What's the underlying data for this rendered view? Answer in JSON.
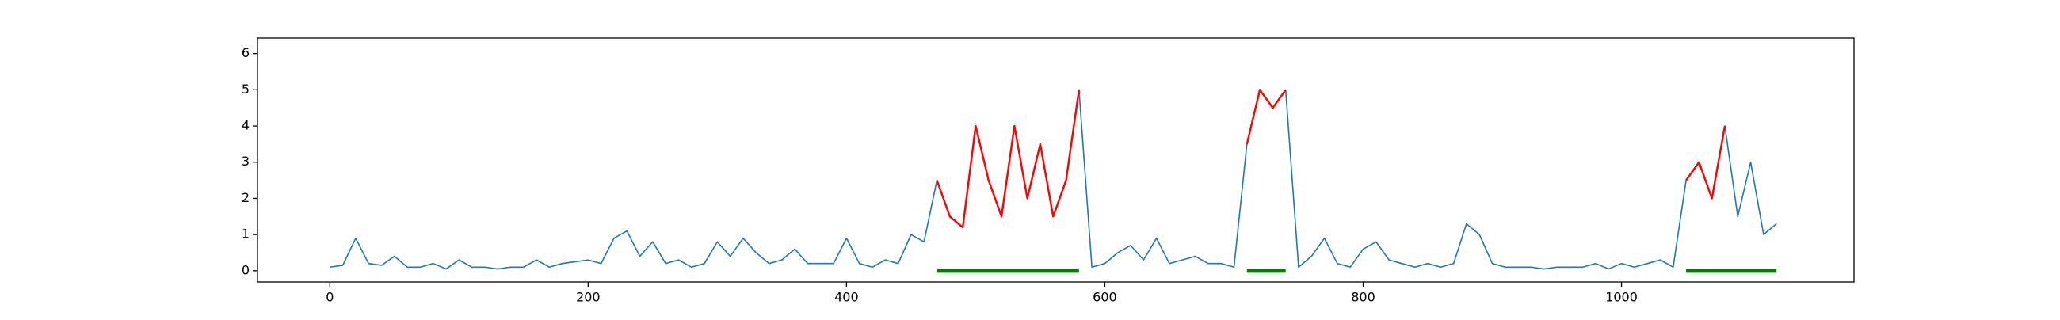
{
  "chart_data": {
    "type": "line",
    "x": [
      0,
      10,
      20,
      30,
      40,
      50,
      60,
      70,
      80,
      90,
      100,
      110,
      120,
      130,
      140,
      150,
      160,
      170,
      180,
      190,
      200,
      210,
      220,
      230,
      240,
      250,
      260,
      270,
      280,
      290,
      300,
      310,
      320,
      330,
      340,
      350,
      360,
      370,
      380,
      390,
      400,
      410,
      420,
      430,
      440,
      450,
      460,
      470,
      480,
      490,
      500,
      510,
      520,
      530,
      540,
      550,
      560,
      570,
      580,
      590,
      600,
      610,
      620,
      630,
      640,
      650,
      660,
      670,
      680,
      690,
      700,
      710,
      720,
      730,
      740,
      750,
      760,
      770,
      780,
      790,
      800,
      810,
      820,
      830,
      840,
      850,
      860,
      870,
      880,
      890,
      900,
      910,
      920,
      930,
      940,
      950,
      960,
      970,
      980,
      990,
      1000,
      1010,
      1020,
      1030,
      1040,
      1050,
      1060,
      1070,
      1080,
      1090,
      1100,
      1110,
      1120
    ],
    "series": [
      {
        "color": "#1f77b4",
        "width": 1.6,
        "values": [
          0.1,
          0.15,
          0.9,
          0.2,
          0.15,
          0.4,
          0.1,
          0.1,
          0.2,
          0.05,
          0.3,
          0.1,
          0.1,
          0.05,
          0.1,
          0.1,
          0.3,
          0.1,
          0.2,
          0.25,
          0.3,
          0.2,
          0.9,
          1.1,
          0.4,
          0.8,
          0.2,
          0.3,
          0.1,
          0.2,
          0.8,
          0.4,
          0.9,
          0.5,
          0.2,
          0.3,
          0.6,
          0.2,
          0.2,
          0.2,
          0.9,
          0.2,
          0.1,
          0.3,
          0.2,
          1.0,
          0.8,
          2.5,
          1.5,
          1.2,
          4.0,
          2.5,
          1.5,
          4.0,
          2.0,
          3.5,
          1.5,
          2.5,
          5.0,
          0.1,
          0.2,
          0.5,
          0.7,
          0.3,
          0.9,
          0.2,
          0.3,
          0.4,
          0.2,
          0.2,
          0.1,
          3.5,
          5.0,
          4.5,
          5.0,
          0.1,
          0.4,
          0.9,
          0.2,
          0.1,
          0.6,
          0.8,
          0.3,
          0.2,
          0.1,
          0.2,
          0.1,
          0.2,
          1.3,
          1.0,
          0.2,
          0.1,
          0.1,
          0.1,
          0.05,
          0.1,
          0.1,
          0.1,
          0.2,
          0.05,
          0.2,
          0.1,
          0.2,
          0.3,
          0.1,
          2.5,
          3.0,
          2.0,
          4.0,
          1.5,
          3.0,
          1.0,
          1.3
        ]
      },
      {
        "color": "#ff0000",
        "width": 2.4,
        "values": [
          null,
          null,
          null,
          null,
          null,
          null,
          null,
          null,
          null,
          null,
          null,
          null,
          null,
          null,
          null,
          null,
          null,
          null,
          null,
          null,
          null,
          null,
          null,
          null,
          null,
          null,
          null,
          null,
          null,
          null,
          null,
          null,
          null,
          null,
          null,
          null,
          null,
          null,
          null,
          null,
          null,
          null,
          null,
          null,
          null,
          null,
          null,
          2.5,
          1.5,
          1.2,
          4.0,
          2.5,
          1.5,
          4.0,
          2.0,
          3.5,
          1.5,
          2.5,
          5.0,
          null,
          null,
          null,
          null,
          null,
          null,
          null,
          null,
          null,
          null,
          null,
          null,
          3.5,
          5.0,
          4.5,
          5.0,
          null,
          null,
          null,
          null,
          null,
          null,
          null,
          null,
          null,
          null,
          null,
          null,
          null,
          null,
          null,
          null,
          null,
          null,
          null,
          null,
          null,
          null,
          null,
          null,
          null,
          null,
          null,
          null,
          null,
          null,
          2.5,
          3.0,
          2.0,
          4.0,
          null,
          null,
          null,
          null
        ]
      },
      {
        "color": "#008000",
        "width": 5,
        "values": [
          null,
          null,
          null,
          null,
          null,
          null,
          null,
          null,
          null,
          null,
          null,
          null,
          null,
          null,
          null,
          null,
          null,
          null,
          null,
          null,
          null,
          null,
          null,
          null,
          null,
          null,
          null,
          null,
          null,
          null,
          null,
          null,
          null,
          null,
          null,
          null,
          null,
          null,
          null,
          null,
          null,
          null,
          null,
          null,
          null,
          null,
          null,
          0,
          0,
          0,
          0,
          0,
          0,
          0,
          0,
          0,
          0,
          0,
          0,
          null,
          null,
          null,
          null,
          null,
          null,
          null,
          null,
          null,
          null,
          null,
          null,
          0,
          0,
          0,
          0,
          null,
          null,
          null,
          null,
          null,
          null,
          null,
          null,
          null,
          null,
          null,
          null,
          null,
          null,
          null,
          null,
          null,
          null,
          null,
          null,
          null,
          null,
          null,
          null,
          null,
          null,
          null,
          null,
          null,
          null,
          0,
          0,
          0,
          0,
          0,
          0,
          0,
          0
        ]
      }
    ],
    "xlim": [
      -56,
      1180
    ],
    "ylim": [
      -0.31,
      6.43
    ],
    "xticks": [
      0,
      200,
      400,
      600,
      800,
      1000
    ],
    "yticks": [
      0,
      1,
      2,
      3,
      4,
      5,
      6
    ]
  }
}
